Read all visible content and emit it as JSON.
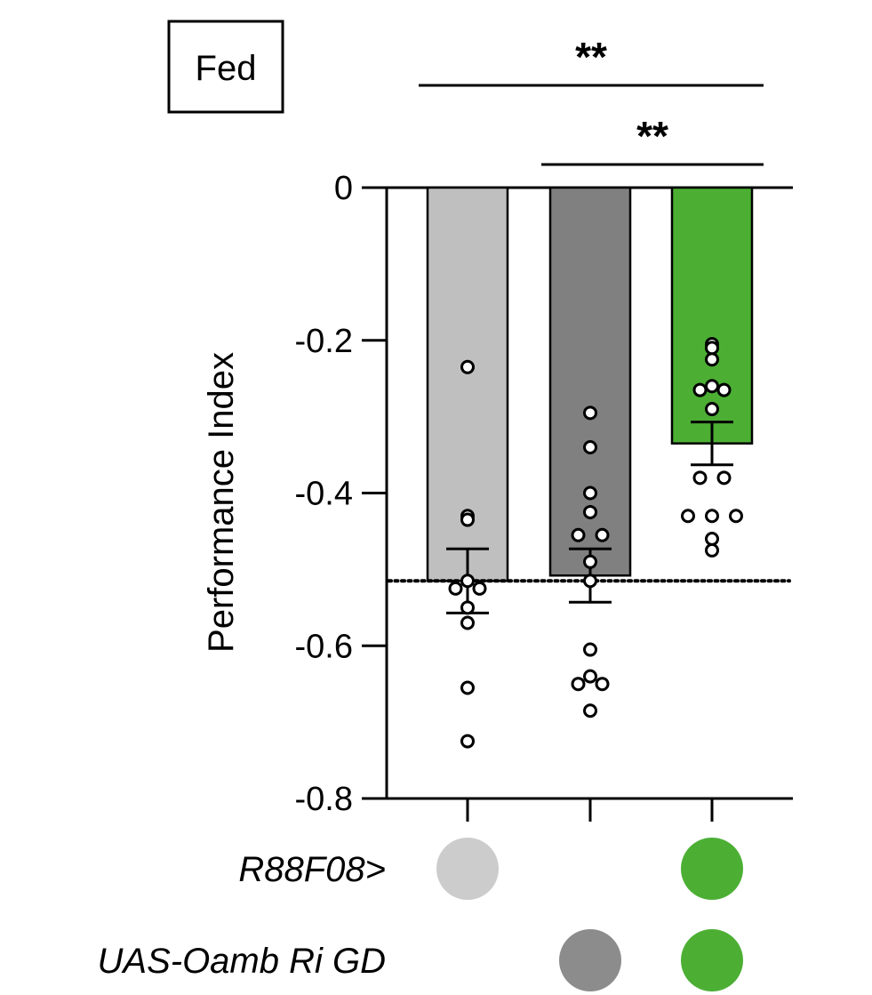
{
  "chart_data": {
    "type": "bar",
    "ylabel": "Performance Index",
    "ylim": [
      -0.8,
      0
    ],
    "yticks": [
      0,
      -0.2,
      -0.4,
      -0.6,
      -0.8
    ],
    "ytick_labels": [
      "0",
      "-0.2",
      "-0.4",
      "-0.6",
      "-0.8"
    ],
    "condition_label": "Fed",
    "reference_line": -0.515,
    "bars": [
      {
        "mean": -0.515,
        "sem": 0.042,
        "color": "#bfbfbf",
        "points": [
          -0.235,
          -0.43,
          -0.435,
          -0.515,
          -0.525,
          -0.525,
          -0.55,
          -0.57,
          -0.655,
          -0.725
        ]
      },
      {
        "mean": -0.508,
        "sem": 0.035,
        "color": "#808080",
        "points": [
          -0.295,
          -0.34,
          -0.4,
          -0.425,
          -0.455,
          -0.455,
          -0.49,
          -0.515,
          -0.605,
          -0.64,
          -0.65,
          -0.65,
          -0.685
        ]
      },
      {
        "mean": -0.335,
        "sem": 0.028,
        "color": "#4caf34",
        "points": [
          -0.205,
          -0.21,
          -0.225,
          -0.26,
          -0.265,
          -0.265,
          -0.29,
          -0.38,
          -0.38,
          -0.43,
          -0.43,
          -0.43,
          -0.46,
          -0.475
        ]
      }
    ],
    "significance": [
      {
        "label": "**",
        "from": 0,
        "to": 2
      },
      {
        "label": "**",
        "from": 1,
        "to": 2
      }
    ],
    "genotype_rows": [
      {
        "label": "R88F08>",
        "circles": [
          {
            "bar": 0,
            "color": "#cccccc"
          },
          {
            "bar": 2,
            "color": "#4caf34"
          }
        ]
      },
      {
        "label": "UAS-Oamb Ri GD",
        "circles": [
          {
            "bar": 1,
            "color": "#8c8c8c"
          },
          {
            "bar": 2,
            "color": "#4caf34"
          }
        ]
      }
    ]
  }
}
